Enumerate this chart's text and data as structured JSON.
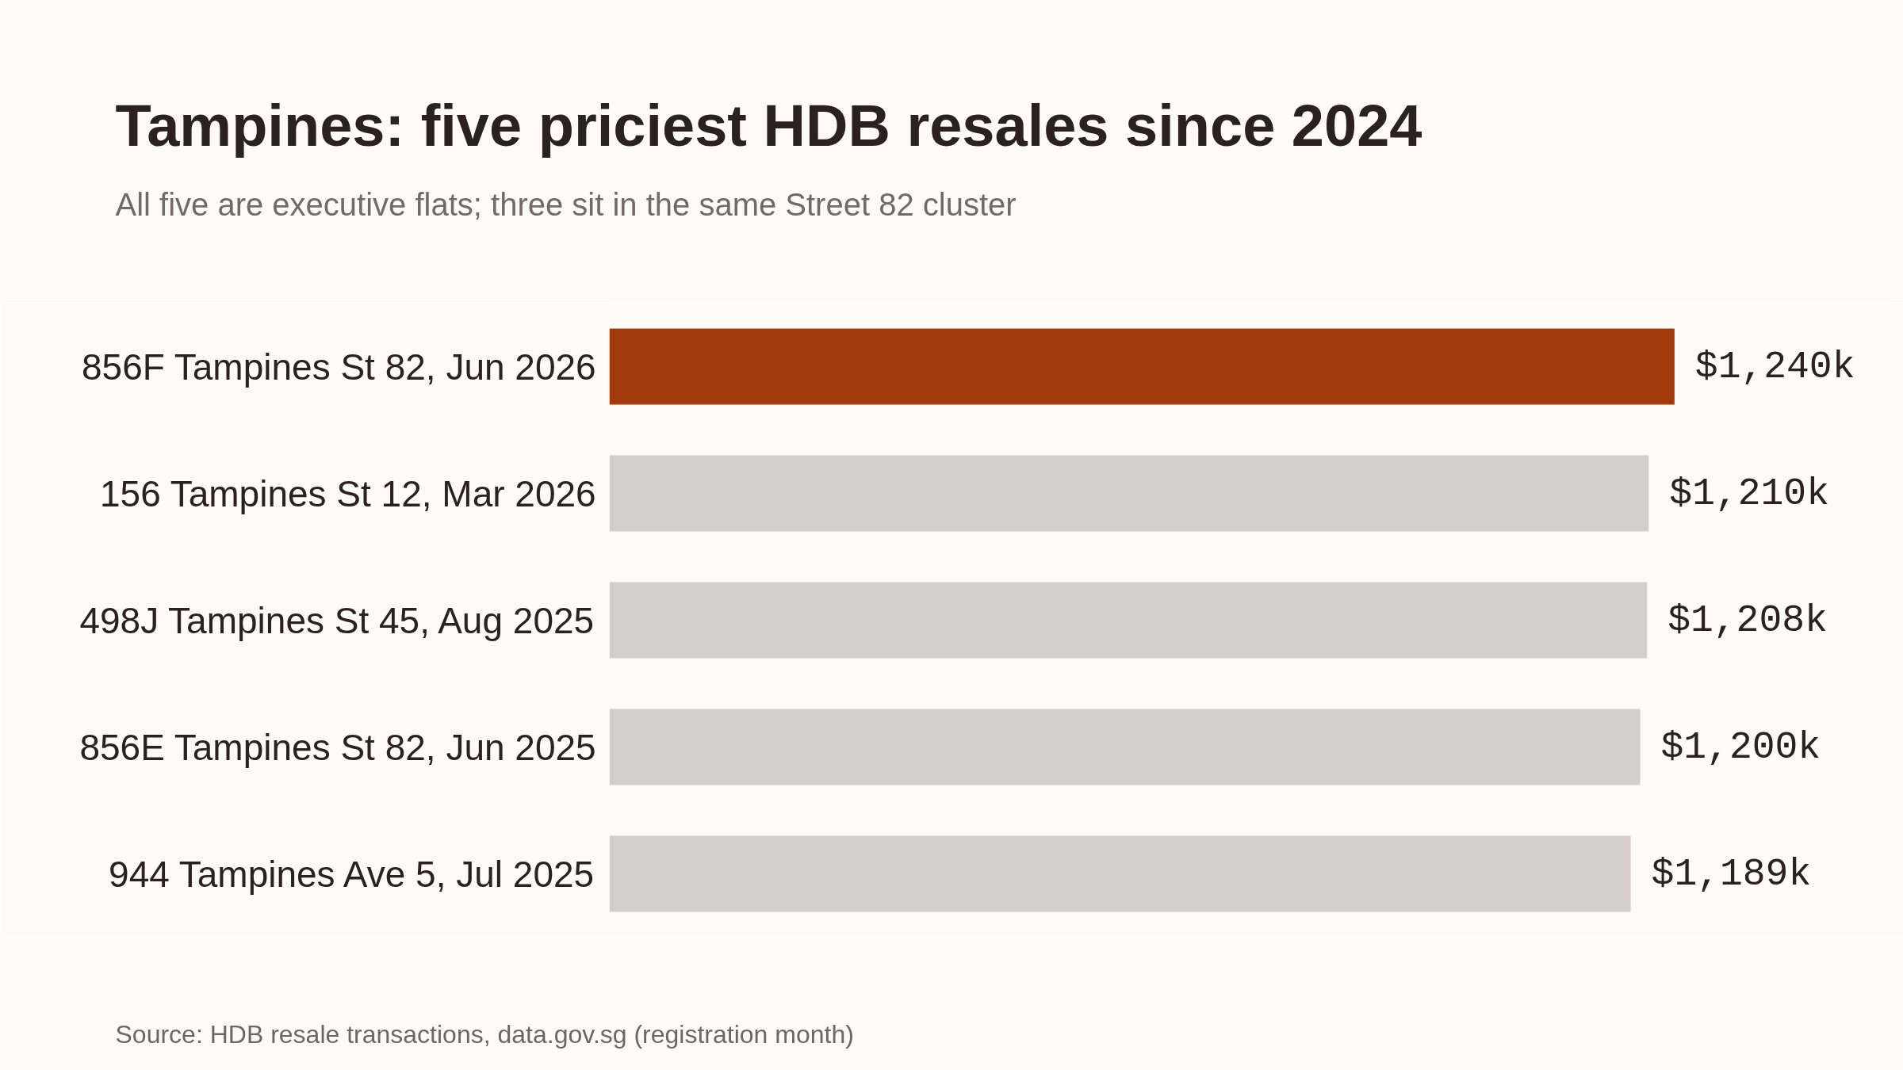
{
  "chart_data": {
    "type": "bar",
    "orientation": "horizontal",
    "title": "Tampines: five priciest HDB resales since 2024",
    "subtitle": "All five are executive flats; three sit in the same Street 82 cluster",
    "categories": [
      "856F Tampines St 82, Jun 2026",
      "156 Tampines St 12, Mar 2026",
      "498J Tampines St 45, Aug 2025",
      "856E Tampines St 82, Jun 2025",
      "944 Tampines Ave 5, Jul 2025"
    ],
    "values": [
      1240,
      1210,
      1208,
      1200,
      1189
    ],
    "colors": [
      "#a33a0e",
      "#d5cdca",
      "#d5cdca",
      "#d5cdca",
      "#d5cdca"
    ],
    "value_labels": [
      "$1,240k",
      "$1,210k",
      "$1,208k",
      "$1,200k",
      "$1,189k"
    ],
    "annotations": [
      "Source: HDB resale transactions, data.gov.sg (registration month)"
    ]
  }
}
